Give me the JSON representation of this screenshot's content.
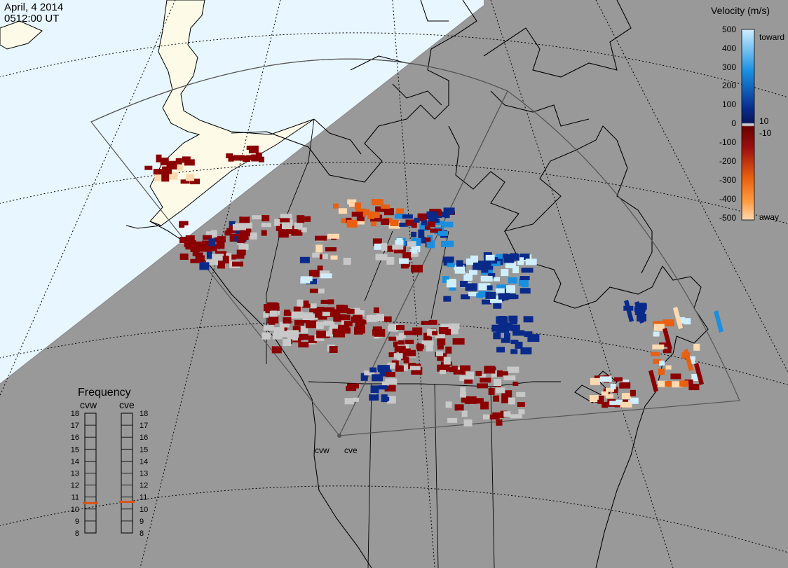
{
  "header": {
    "date": "April, 4 2014",
    "time": "0512:00 UT"
  },
  "colorbar": {
    "title": "Velocity (m/s)",
    "ticks": [
      "500",
      "400",
      "300",
      "200",
      "100",
      "10",
      "0",
      "-10",
      "-100",
      "-200",
      "-300",
      "-400",
      "-500"
    ],
    "label_toward": "toward",
    "label_away": "away",
    "colors": {
      "strong_toward": "#cfeeff",
      "toward": "#1a8fe0",
      "weak_toward": "#0a2a8a",
      "ground_scatter": "#c8c8c8",
      "weak_away": "#8b0000",
      "away": "#e86010",
      "strong_away": "#ffd9b0"
    }
  },
  "frequency": {
    "title": "Frequency",
    "radar_left": "cvw",
    "radar_right": "cve",
    "ticks": [
      "18",
      "17",
      "16",
      "15",
      "14",
      "13",
      "12",
      "11",
      "10",
      "9",
      "8"
    ],
    "cvw_mhz": 10.5,
    "cve_mhz": 10.6,
    "marker_color": "#e05010"
  },
  "map": {
    "radar_labels": [
      "cvw",
      "cve"
    ],
    "night_color": "#999999",
    "day_ocean_color": "#e8f6ff",
    "day_land_color": "#fdfbe8"
  }
}
